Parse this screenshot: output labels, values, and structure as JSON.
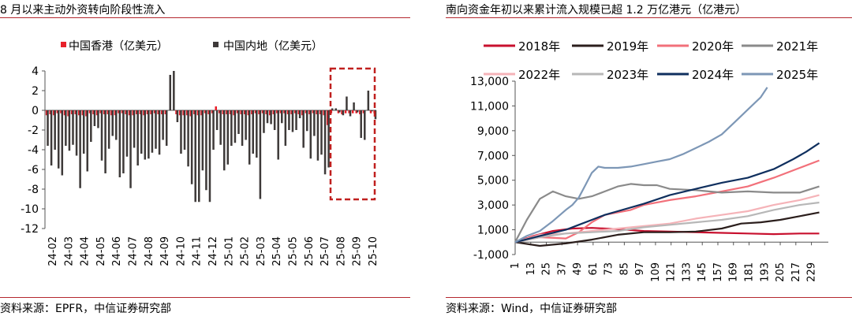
{
  "colors": {
    "accent": "#b5282f",
    "hk": "#e8202a",
    "mainland": "#3e3a39",
    "highlight": "#c0201f"
  },
  "chart_data": [
    {
      "type": "bar",
      "title": "8 月以来主动外资转向阶段性流入",
      "source": "资料来源：EPFR，中信证券研究部",
      "ylim": [
        -12,
        4
      ],
      "yticks": [
        "4",
        "2",
        "0",
        "-2",
        "-4",
        "-6",
        "-8",
        "-10",
        "-12"
      ],
      "xtick_labels": [
        "24-02",
        "24-03",
        "24-04",
        "24-05",
        "24-06",
        "24-07",
        "24-08",
        "24-09",
        "24-10",
        "24-11",
        "24-12",
        "25-01",
        "25-02",
        "25-03",
        "25-04",
        "25-05",
        "25-06",
        "25-07",
        "25-08",
        "25-09",
        "25-10"
      ],
      "legend_position": "top-left",
      "series": [
        {
          "name": "中国香港（亿美元）",
          "values": [
            -0.5,
            -0.4,
            -0.5,
            -0.3,
            -0.3,
            -0.5,
            -0.6,
            -0.4,
            -0.4,
            -0.5,
            -0.5,
            -0.6,
            -0.3,
            -0.4,
            -0.5,
            -0.3,
            -0.4,
            -0.4,
            -0.5,
            -0.5,
            -0.3,
            -0.3,
            -0.4,
            -0.5,
            -0.5,
            -0.4,
            -0.4,
            -0.5,
            -0.4,
            -0.4,
            -0.3,
            -0.4,
            -0.4,
            -0.4,
            0.0,
            0.0,
            -0.4,
            -0.5,
            -0.5,
            -0.5,
            -0.6,
            -0.4,
            -0.5,
            -0.5,
            -0.3,
            -0.4,
            -0.3,
            0.4,
            -0.3,
            -0.4,
            -0.4,
            -0.4,
            -0.5,
            -0.3,
            -0.4,
            -0.4,
            -0.5,
            -0.4,
            -0.3,
            -0.4,
            -0.3,
            -0.4,
            -0.5,
            -0.4,
            -0.3,
            -0.3,
            -0.3,
            -0.4,
            -0.4,
            -0.3,
            -0.4,
            -0.5,
            -0.3,
            -0.4,
            -0.3,
            -0.4,
            -0.4,
            -0.5,
            -1.5,
            -0.3,
            0.0,
            -0.3,
            -0.4,
            -0.3,
            -0.3,
            -0.3,
            -0.3,
            -0.4,
            -0.3,
            0.0,
            -0.3,
            -0.3
          ]
        },
        {
          "name": "中国内地（亿美元）",
          "values": [
            -3.6,
            -5.6,
            -4.0,
            -5.9,
            -6.6,
            -3.6,
            -4.1,
            -3.5,
            -4.6,
            -7.9,
            -4.4,
            -6.2,
            -3.2,
            -1.6,
            -1.8,
            -5.1,
            -6.4,
            -3.9,
            -2.6,
            -3.0,
            -6.8,
            -6.4,
            -4.7,
            -7.9,
            -3.8,
            -5.6,
            -4.4,
            -5.0,
            -4.9,
            -4.3,
            -3.9,
            -4.5,
            -3.0,
            -3.6,
            3.6,
            4.0,
            -1.2,
            -4.4,
            -4.0,
            -5.7,
            -7.5,
            -9.3,
            -9.3,
            -6.1,
            -8.1,
            -9.3,
            -4.0,
            -2.0,
            -3.5,
            -6.1,
            -5.5,
            -3.6,
            -3.3,
            -2.4,
            -3.6,
            -3.0,
            -5.5,
            -4.4,
            -4.8,
            -9.0,
            -2.3,
            -1.3,
            -1.4,
            -2.0,
            -5.0,
            -1.3,
            -3.6,
            -2.0,
            -2.2,
            -2.0,
            -0.8,
            -3.8,
            -2.1,
            -4.9,
            -2.6,
            -5.1,
            -4.5,
            -6.5,
            -5.8,
            0.2,
            0.2,
            -0.2,
            -0.5,
            1.4,
            -0.6,
            0.8,
            -0.2,
            -2.8,
            -3.0,
            2.0,
            -0.1,
            -0.9
          ]
        }
      ]
    },
    {
      "type": "line",
      "title": "南向资金年初以来累计流入规模已超 1.2 万亿港元（亿港元）",
      "source": "资料来源：Wind，中信证券研究部",
      "ylim": [
        -1000,
        13000
      ],
      "yticks": [
        "13,000",
        "11,000",
        "9,000",
        "7,000",
        "5,000",
        "3,000",
        "1,000",
        "-1,000"
      ],
      "xlim": [
        1,
        242
      ],
      "xticks": [
        "1",
        "13",
        "25",
        "37",
        "49",
        "61",
        "73",
        "85",
        "97",
        "109",
        "121",
        "133",
        "145",
        "157",
        "169",
        "181",
        "193",
        "205",
        "217",
        "229"
      ],
      "legend_position": "top",
      "series": [
        {
          "name": "2018年",
          "color": "#c8102e",
          "x": [
            1,
            15,
            30,
            45,
            60,
            80,
            100,
            120,
            140,
            160,
            180,
            200,
            220,
            235
          ],
          "y": [
            0,
            500,
            900,
            1100,
            1150,
            1050,
            900,
            850,
            800,
            750,
            700,
            650,
            700,
            700
          ]
        },
        {
          "name": "2019年",
          "color": "#2b1e1c",
          "x": [
            1,
            20,
            40,
            60,
            80,
            100,
            120,
            140,
            160,
            175,
            190,
            205,
            220,
            235
          ],
          "y": [
            0,
            -300,
            -100,
            200,
            600,
            800,
            800,
            850,
            1100,
            1500,
            1600,
            1800,
            2100,
            2400
          ]
        },
        {
          "name": "2020年",
          "color": "#f2707a",
          "x": [
            1,
            20,
            40,
            50,
            60,
            70,
            80,
            90,
            100,
            120,
            140,
            160,
            180,
            200,
            220,
            235
          ],
          "y": [
            0,
            400,
            300,
            800,
            1600,
            2200,
            2400,
            2600,
            3000,
            3400,
            3700,
            4100,
            4500,
            5200,
            6000,
            6600
          ]
        },
        {
          "name": "2021年",
          "color": "#8a8a8a",
          "x": [
            1,
            10,
            20,
            30,
            40,
            50,
            60,
            70,
            80,
            90,
            100,
            110,
            120,
            140,
            160,
            180,
            200,
            220,
            235
          ],
          "y": [
            0,
            1800,
            3500,
            4100,
            3700,
            3500,
            3700,
            4100,
            4500,
            4700,
            4600,
            4600,
            4300,
            4200,
            4000,
            4100,
            4000,
            4000,
            4500
          ]
        },
        {
          "name": "2022年",
          "color": "#f5b3b8",
          "x": [
            1,
            20,
            40,
            60,
            80,
            100,
            120,
            140,
            160,
            180,
            200,
            220,
            235
          ],
          "y": [
            0,
            600,
            700,
            900,
            1100,
            1300,
            1500,
            1900,
            2200,
            2500,
            3000,
            3400,
            3800
          ]
        },
        {
          "name": "2023年",
          "color": "#b7b7b7",
          "x": [
            1,
            20,
            40,
            60,
            80,
            100,
            120,
            140,
            160,
            180,
            200,
            220,
            235
          ],
          "y": [
            0,
            400,
            700,
            800,
            900,
            1200,
            1400,
            1600,
            1800,
            2100,
            2600,
            3000,
            3200
          ]
        },
        {
          "name": "2024年",
          "color": "#0f2f5e",
          "x": [
            1,
            20,
            40,
            50,
            60,
            70,
            80,
            100,
            120,
            140,
            160,
            180,
            200,
            215,
            225,
            235
          ],
          "y": [
            0,
            500,
            1000,
            1400,
            1800,
            2200,
            2500,
            3100,
            3800,
            4300,
            4800,
            5200,
            5900,
            6700,
            7300,
            8000
          ]
        },
        {
          "name": "2025年",
          "color": "#7d97b6",
          "x": [
            1,
            10,
            20,
            30,
            40,
            45,
            50,
            55,
            60,
            65,
            70,
            80,
            90,
            100,
            110,
            120,
            130,
            140,
            150,
            160,
            170,
            180,
            190,
            195
          ],
          "y": [
            0,
            500,
            900,
            1700,
            2600,
            3000,
            3600,
            4600,
            5600,
            6100,
            6000,
            6000,
            6100,
            6300,
            6500,
            6700,
            7100,
            7600,
            8100,
            8700,
            9700,
            10700,
            11700,
            12500
          ]
        }
      ]
    }
  ]
}
